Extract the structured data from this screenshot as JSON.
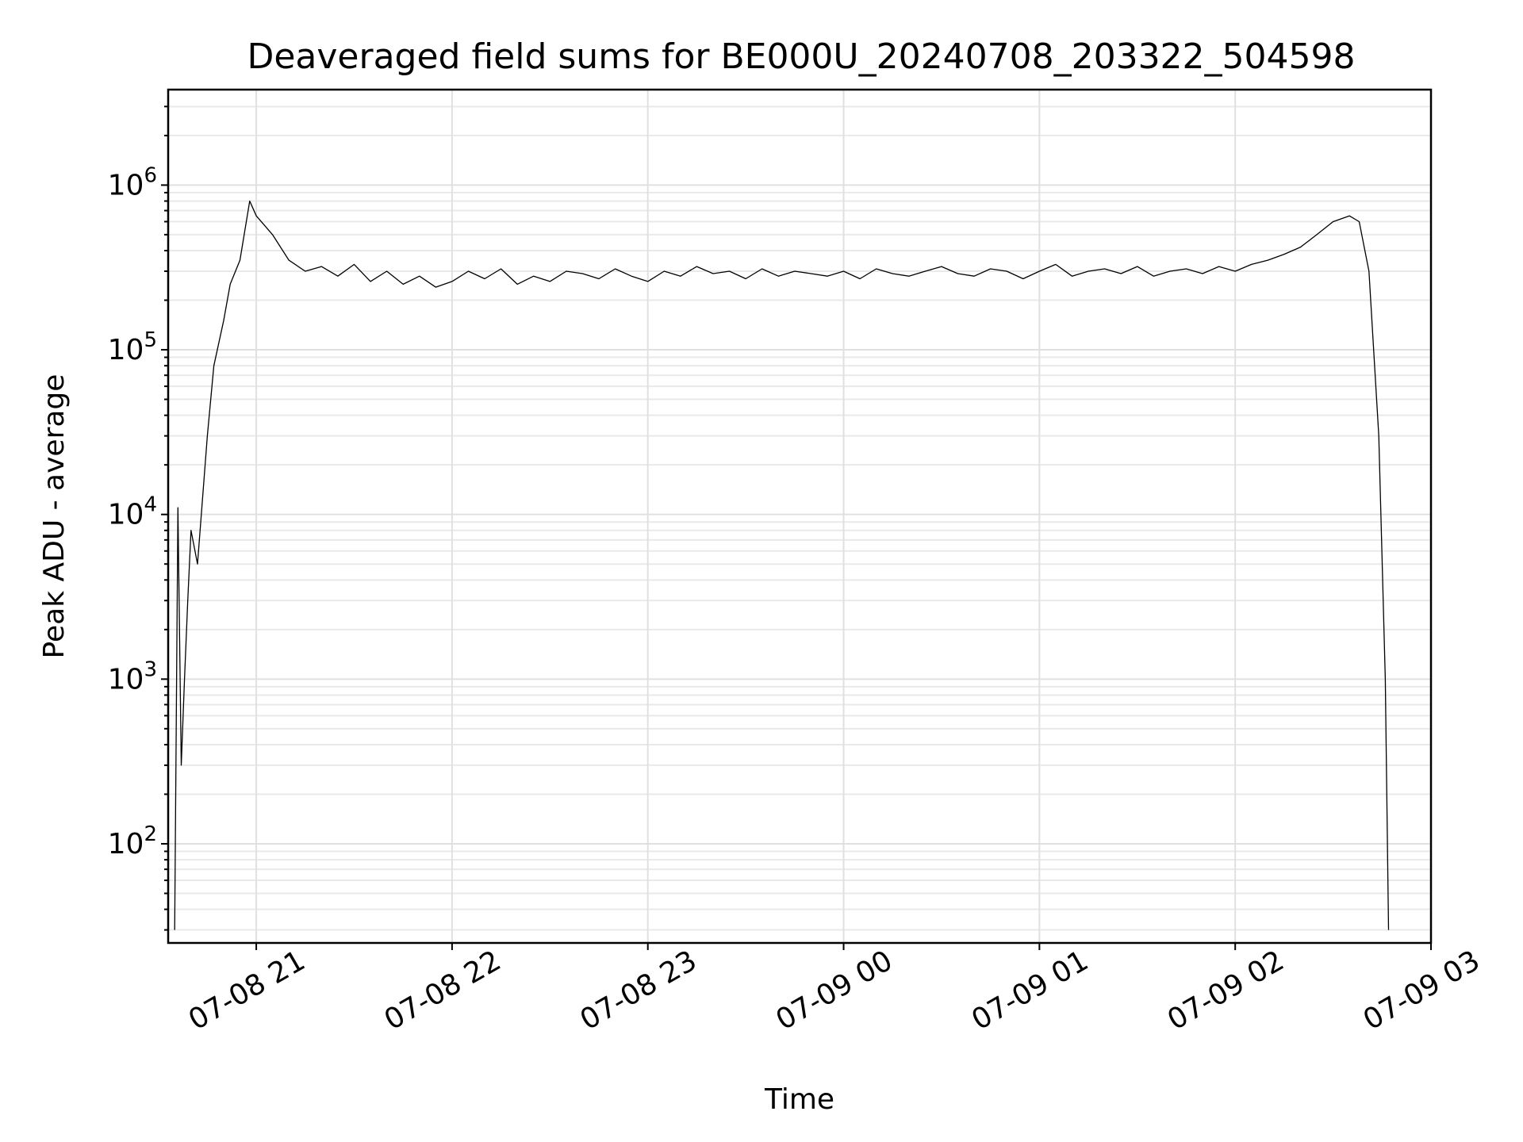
{
  "chart_data": {
    "type": "line",
    "title": "Deaveraged field sums for BE000U_20240708_203322_504598",
    "xlabel": "Time",
    "ylabel": "Peak ADU - average",
    "yscale": "log",
    "ylim": [
      25,
      3800000
    ],
    "xlim": [
      "2024-07-08 20:33",
      "2024-07-09 03:00"
    ],
    "grid": true,
    "line_color": "#000000",
    "x_ticks": [
      "07-08 21",
      "07-08 22",
      "07-08 23",
      "07-09 00",
      "07-09 01",
      "07-09 02",
      "07-09 03"
    ],
    "x_tick_values": [
      "2024-07-08 21:00",
      "2024-07-08 22:00",
      "2024-07-08 23:00",
      "2024-07-09 00:00",
      "2024-07-09 01:00",
      "2024-07-09 02:00",
      "2024-07-09 03:00"
    ],
    "y_ticks": [
      {
        "value": 100,
        "base": "10",
        "exp": "2"
      },
      {
        "value": 1000,
        "base": "10",
        "exp": "3"
      },
      {
        "value": 10000,
        "base": "10",
        "exp": "4"
      },
      {
        "value": 100000,
        "base": "10",
        "exp": "5"
      },
      {
        "value": 1000000,
        "base": "10",
        "exp": "6"
      }
    ],
    "series": [
      {
        "x": [
          "2024-07-08 20:35",
          "2024-07-08 20:36",
          "2024-07-08 20:37",
          "2024-07-08 20:38",
          "2024-07-08 20:39",
          "2024-07-08 20:40",
          "2024-07-08 20:42",
          "2024-07-08 20:45",
          "2024-07-08 20:47",
          "2024-07-08 20:50",
          "2024-07-08 20:52",
          "2024-07-08 20:55",
          "2024-07-08 20:58",
          "2024-07-08 21:00",
          "2024-07-08 21:05",
          "2024-07-08 21:10",
          "2024-07-08 21:15",
          "2024-07-08 21:20",
          "2024-07-08 21:25",
          "2024-07-08 21:30",
          "2024-07-08 21:35",
          "2024-07-08 21:40",
          "2024-07-08 21:45",
          "2024-07-08 21:50",
          "2024-07-08 21:55",
          "2024-07-08 22:00",
          "2024-07-08 22:05",
          "2024-07-08 22:10",
          "2024-07-08 22:15",
          "2024-07-08 22:20",
          "2024-07-08 22:25",
          "2024-07-08 22:30",
          "2024-07-08 22:35",
          "2024-07-08 22:40",
          "2024-07-08 22:45",
          "2024-07-08 22:50",
          "2024-07-08 22:55",
          "2024-07-08 23:00",
          "2024-07-08 23:05",
          "2024-07-08 23:10",
          "2024-07-08 23:15",
          "2024-07-08 23:20",
          "2024-07-08 23:25",
          "2024-07-08 23:30",
          "2024-07-08 23:35",
          "2024-07-08 23:40",
          "2024-07-08 23:45",
          "2024-07-08 23:50",
          "2024-07-08 23:55",
          "2024-07-09 00:00",
          "2024-07-09 00:05",
          "2024-07-09 00:10",
          "2024-07-09 00:15",
          "2024-07-09 00:20",
          "2024-07-09 00:25",
          "2024-07-09 00:30",
          "2024-07-09 00:35",
          "2024-07-09 00:40",
          "2024-07-09 00:45",
          "2024-07-09 00:50",
          "2024-07-09 00:55",
          "2024-07-09 01:00",
          "2024-07-09 01:05",
          "2024-07-09 01:10",
          "2024-07-09 01:15",
          "2024-07-09 01:20",
          "2024-07-09 01:25",
          "2024-07-09 01:30",
          "2024-07-09 01:35",
          "2024-07-09 01:40",
          "2024-07-09 01:45",
          "2024-07-09 01:50",
          "2024-07-09 01:55",
          "2024-07-09 02:00",
          "2024-07-09 02:05",
          "2024-07-09 02:10",
          "2024-07-09 02:15",
          "2024-07-09 02:20",
          "2024-07-09 02:25",
          "2024-07-09 02:30",
          "2024-07-09 02:35",
          "2024-07-09 02:38",
          "2024-07-09 02:41",
          "2024-07-09 02:44",
          "2024-07-09 02:46",
          "2024-07-09 02:47"
        ],
        "y": [
          30,
          11000,
          300,
          1000,
          3000,
          8000,
          5000,
          30000,
          80000,
          150000,
          250000,
          350000,
          800000,
          650000,
          500000,
          350000,
          300000,
          320000,
          280000,
          330000,
          260000,
          300000,
          250000,
          280000,
          240000,
          260000,
          300000,
          270000,
          310000,
          250000,
          280000,
          260000,
          300000,
          290000,
          270000,
          310000,
          280000,
          260000,
          300000,
          280000,
          320000,
          290000,
          300000,
          270000,
          310000,
          280000,
          300000,
          290000,
          280000,
          300000,
          270000,
          310000,
          290000,
          280000,
          300000,
          320000,
          290000,
          280000,
          310000,
          300000,
          270000,
          300000,
          330000,
          280000,
          300000,
          310000,
          290000,
          320000,
          280000,
          300000,
          310000,
          290000,
          320000,
          300000,
          330000,
          350000,
          380000,
          420000,
          500000,
          600000,
          650000,
          600000,
          300000,
          30000,
          1000,
          30
        ]
      }
    ]
  }
}
